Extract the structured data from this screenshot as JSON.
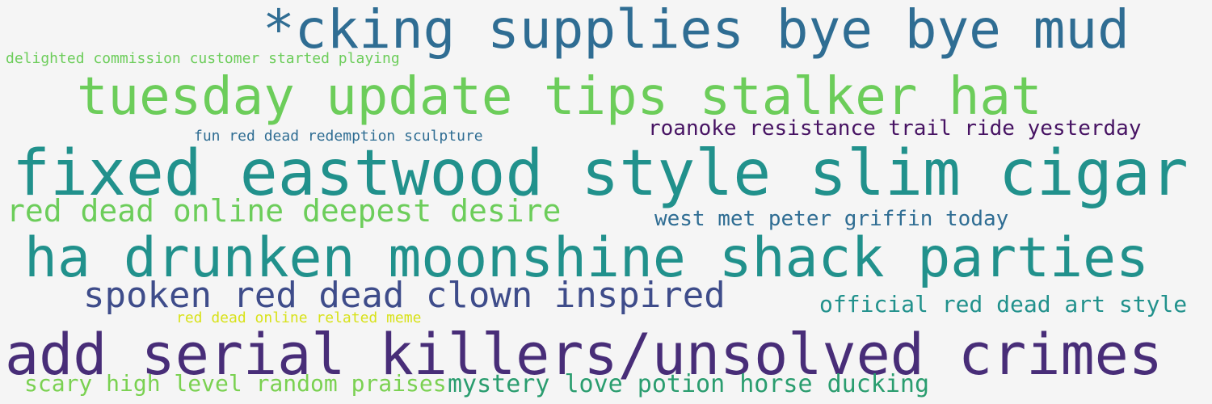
{
  "phrases": [
    "*cking supplies bye bye mud",
    "delighted commission customer started playing",
    "tuesday update tips stalker hat",
    "fun red dead redemption sculpture",
    "roanoke resistance trail ride yesterday",
    "fixed eastwood style slim cigar",
    "red dead online deepest desire",
    "west met peter griffin today",
    "ha drunken moonshine shack parties",
    "spoken red dead clown inspired",
    "official red dead art style",
    "red dead online related meme",
    "add serial killers/unsolved crimes",
    "scary high level random praises",
    "mystery love potion horse ducking"
  ],
  "colors": {
    "background": "#f5f5f5",
    "palette": [
      "#471363",
      "#482d78",
      "#3e4c8a",
      "#2f6d93",
      "#21918c",
      "#2a9d6f",
      "#6ccd5a",
      "#7ad151",
      "#d8e219"
    ]
  }
}
